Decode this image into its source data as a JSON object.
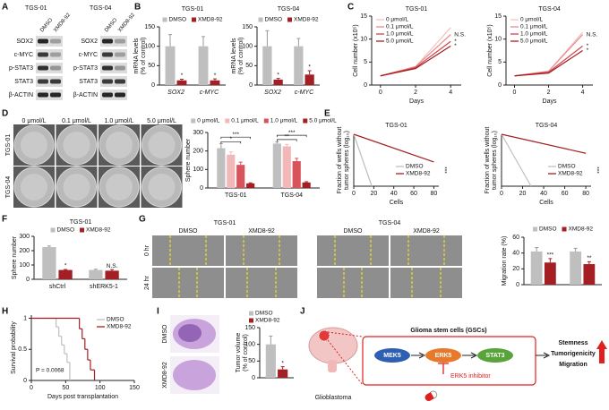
{
  "figure": {
    "panels": [
      "A",
      "B",
      "C",
      "D",
      "E",
      "F",
      "G",
      "H",
      "I",
      "J"
    ]
  },
  "blots": {
    "cell_lines": [
      "TGS-01",
      "TGS-04"
    ],
    "lanes": [
      "DMSO",
      "XMD8-92"
    ],
    "proteins": [
      "SOX2",
      "c-MYC",
      "p-STAT3",
      "STAT3",
      "β-ACTIN"
    ]
  },
  "sphere_images": {
    "doses": [
      "0 μmol/L",
      "0.1 μmol/L",
      "1.0 μmol/L",
      "5.0 μmol/L"
    ],
    "rows": [
      "TGS-01",
      "TGS-04"
    ]
  },
  "migration_images": {
    "cell_lines": [
      "TGS-01",
      "TGS-04"
    ],
    "treatments": [
      "DMSO",
      "XMD8-92"
    ],
    "times": [
      "0 hr",
      "24 hr"
    ]
  },
  "tumor_images": {
    "rows": [
      "DMSO",
      "XMD8-92"
    ]
  },
  "diagram": {
    "box_title": "Glioma stem cells (GSCs)",
    "nodes": [
      "MEK5",
      "ERK5",
      "STAT3"
    ],
    "outcomes": [
      "Stemness",
      "Tumorigenicity",
      "Migration"
    ],
    "organ": "Glioblastoma",
    "inhibitor": "ERK5 inhibitor"
  },
  "chart_data": [
    {
      "type": "bar",
      "title": "TGS-01",
      "ylabel": [
        "mRNA levels",
        "(% of control)"
      ],
      "categories": [
        "SOX2",
        "c-MYC"
      ],
      "series": [
        {
          "name": "DMSO",
          "color": "#bfbfbf",
          "values": [
            100,
            100
          ],
          "errors": [
            30,
            25
          ]
        },
        {
          "name": "XMD8-92",
          "color": "#a31f24",
          "values": [
            12,
            12
          ],
          "errors": [
            3,
            4
          ]
        }
      ],
      "ylim": [
        0,
        150
      ],
      "yticks": [
        0,
        50,
        100,
        150
      ],
      "legend": "top",
      "annotations": [
        "*",
        "*"
      ]
    },
    {
      "type": "bar",
      "title": "TGS-04",
      "ylabel": [
        "mRNA levels",
        "(% of control)"
      ],
      "categories": [
        "SOX2",
        "c-MYC"
      ],
      "series": [
        {
          "name": "DMSO",
          "color": "#bfbfbf",
          "values": [
            100,
            100
          ],
          "errors": [
            40,
            20
          ]
        },
        {
          "name": "XMD8-92",
          "color": "#a31f24",
          "values": [
            14,
            27
          ],
          "errors": [
            3,
            10
          ]
        }
      ],
      "ylim": [
        0,
        150
      ],
      "yticks": [
        0,
        50,
        100,
        150
      ],
      "legend": "top",
      "annotations": [
        "*",
        "*"
      ]
    },
    {
      "type": "line",
      "title": "TGS-01",
      "ylabel": "Cell number (x10⁵)",
      "xlabel": "Days",
      "x": [
        0,
        2,
        4
      ],
      "xlim": [
        -0.5,
        4.6
      ],
      "xticks": [
        0,
        2,
        4
      ],
      "ylim": [
        0,
        15
      ],
      "yticks": [
        0,
        5,
        10,
        15
      ],
      "legend": "upper left",
      "series": [
        {
          "name": "0 μmol/L",
          "color": "#f4c2c2",
          "values": [
            2,
            4,
            12.5
          ]
        },
        {
          "name": "0.1 μmol/L",
          "color": "#e88a8a",
          "values": [
            2,
            4,
            11
          ]
        },
        {
          "name": "1.0 μmol/L",
          "color": "#d0454c",
          "values": [
            2,
            3.8,
            9.5
          ]
        },
        {
          "name": "5.0 μmol/L",
          "color": "#a31f24",
          "values": [
            2,
            3.6,
            8.5
          ]
        }
      ],
      "annotations": [
        "N.S.",
        "*",
        "*"
      ]
    },
    {
      "type": "line",
      "title": "TGS-04",
      "ylabel": "Cell number (x10⁵)",
      "xlabel": "Days",
      "x": [
        0,
        2,
        4
      ],
      "xlim": [
        -0.5,
        4.6
      ],
      "xticks": [
        0,
        2,
        4
      ],
      "ylim": [
        0,
        15
      ],
      "yticks": [
        0,
        5,
        10,
        15
      ],
      "legend": "upper left",
      "series": [
        {
          "name": "0 μmol/L",
          "color": "#f4c2c2",
          "values": [
            2,
            3,
            11.5
          ]
        },
        {
          "name": "0.1 μmol/L",
          "color": "#e88a8a",
          "values": [
            2,
            3,
            11
          ]
        },
        {
          "name": "1.0 μmol/L",
          "color": "#d0454c",
          "values": [
            2,
            2.8,
            8.5
          ]
        },
        {
          "name": "5.0 μmol/L",
          "color": "#a31f24",
          "values": [
            2,
            2.6,
            7.5
          ]
        }
      ],
      "annotations": [
        "N.S.",
        "*",
        "*"
      ]
    },
    {
      "type": "bar",
      "ylabel": "Sphere number",
      "categories": [
        "TGS-01",
        "TGS-04"
      ],
      "series": [
        {
          "name": "0 μmol/L",
          "color": "#bfbfbf",
          "values": [
            215,
            240
          ],
          "errors": [
            25,
            10
          ]
        },
        {
          "name": "0.1 μmol/L",
          "color": "#f2b8b8",
          "values": [
            180,
            225
          ],
          "errors": [
            15,
            10
          ]
        },
        {
          "name": "1.0 μmol/L",
          "color": "#d9535a",
          "values": [
            125,
            145
          ],
          "errors": [
            15,
            15
          ]
        },
        {
          "name": "5.0 μmol/L",
          "color": "#a31f24",
          "values": [
            25,
            30
          ],
          "errors": [
            3,
            4
          ]
        }
      ],
      "ylim": [
        0,
        300
      ],
      "yticks": [
        0,
        100,
        200,
        300
      ],
      "legend": "top",
      "annotations": [
        "*",
        "***",
        "**",
        "***"
      ]
    },
    {
      "type": "line",
      "title": "TGS-01",
      "ylabel": [
        "Fraction of wells without",
        "tumor spheres (log₁₀)"
      ],
      "xlabel": "Cells",
      "xlim": [
        0,
        85
      ],
      "xticks": [
        0,
        20,
        40,
        60,
        80
      ],
      "ylim": [
        -3,
        0
      ],
      "legend": "lower right",
      "series": [
        {
          "name": "DMSO",
          "color": "#bfbfbf",
          "x": [
            0,
            18
          ],
          "values": [
            0,
            -3
          ]
        },
        {
          "name": "XMD8-92",
          "color": "#a31f24",
          "x": [
            0,
            80
          ],
          "values": [
            0,
            -1.6
          ]
        }
      ],
      "annotations": [
        "***"
      ]
    },
    {
      "type": "line",
      "title": "TGS-04",
      "ylabel": [
        "Fraction of wells without",
        "tumor spheres (log₁₀)"
      ],
      "xlabel": "Cells",
      "xlim": [
        0,
        85
      ],
      "xticks": [
        0,
        20,
        40,
        60,
        80
      ],
      "ylim": [
        -3,
        0
      ],
      "legend": "lower right",
      "series": [
        {
          "name": "DMSO",
          "color": "#bfbfbf",
          "x": [
            0,
            28
          ],
          "values": [
            0,
            -3
          ]
        },
        {
          "name": "XMD8-92",
          "color": "#a31f24",
          "x": [
            0,
            80
          ],
          "values": [
            0,
            -1.1
          ]
        }
      ],
      "annotations": [
        "***"
      ]
    },
    {
      "type": "bar",
      "title": "TGS-01",
      "ylabel": "Sphere number",
      "categories": [
        "shCtrl",
        "shERK5-1"
      ],
      "series": [
        {
          "name": "DMSO",
          "color": "#bfbfbf",
          "values": [
            225,
            65
          ],
          "errors": [
            8,
            5
          ]
        },
        {
          "name": "XMD8-92",
          "color": "#a31f24",
          "values": [
            65,
            60
          ],
          "errors": [
            4,
            8
          ]
        }
      ],
      "ylim": [
        0,
        300
      ],
      "yticks": [
        0,
        100,
        200,
        300
      ],
      "legend": "top",
      "annotations": [
        "*",
        "N.S."
      ]
    },
    {
      "type": "bar",
      "ylabel": "Migration rate (%)",
      "categories": [
        null,
        null
      ],
      "series": [
        {
          "name": "DMSO",
          "color": "#bfbfbf",
          "values": [
            42,
            42
          ],
          "errors": [
            5,
            4
          ]
        },
        {
          "name": "XMD8-92",
          "color": "#a31f24",
          "values": [
            28,
            26
          ],
          "errors": [
            5,
            3
          ]
        }
      ],
      "ylim": [
        0,
        60
      ],
      "yticks": [
        0,
        20,
        40,
        60
      ],
      "legend": "top",
      "annotations": [
        "***",
        "**"
      ]
    },
    {
      "type": "line",
      "step": true,
      "ylabel": "Survival probability",
      "xlabel": "Days post transplantation",
      "xlim": [
        0,
        150
      ],
      "xticks": [
        0,
        50,
        100,
        150
      ],
      "ylim": [
        0,
        1.05
      ],
      "yticks": [
        0,
        0.5,
        1
      ],
      "legend": "upper right",
      "series": [
        {
          "name": "DMSO",
          "color": "#bfbfbf",
          "x": [
            0,
            36,
            40,
            44,
            48,
            52,
            56
          ],
          "values": [
            1,
            0.86,
            0.71,
            0.57,
            0.43,
            0.29,
            0
          ]
        },
        {
          "name": "XMD8-92",
          "color": "#a31f24",
          "x": [
            0,
            70,
            74,
            78,
            82,
            86,
            92
          ],
          "values": [
            1,
            0.83,
            0.67,
            0.5,
            0.33,
            0.17,
            0
          ]
        }
      ],
      "annotations": [
        "P = 0.0068"
      ]
    },
    {
      "type": "bar",
      "ylabel": [
        "Tumor volume",
        "(% of control)"
      ],
      "categories": [
        null
      ],
      "series": [
        {
          "name": "DMSO",
          "color": "#bfbfbf",
          "values": [
            100
          ],
          "errors": [
            25
          ]
        },
        {
          "name": "XMD8-92",
          "color": "#a31f24",
          "values": [
            25
          ],
          "errors": [
            8
          ]
        }
      ],
      "ylim": [
        0,
        150
      ],
      "yticks": [
        0,
        50,
        100,
        150
      ],
      "legend": "top",
      "annotations": [
        "*"
      ]
    }
  ]
}
